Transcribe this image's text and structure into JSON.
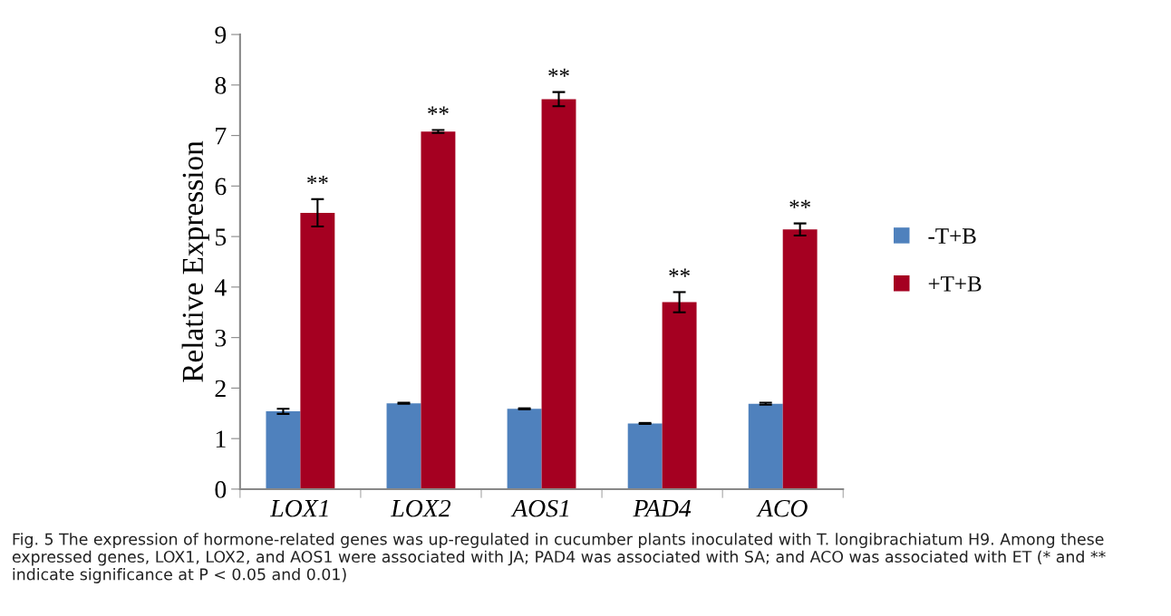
{
  "chart_data": {
    "type": "bar",
    "ylabel": "Relative Expression",
    "categories": [
      "LOX1",
      "LOX2",
      "AOS1",
      "PAD4",
      "ACO"
    ],
    "series": [
      {
        "name": "-T+B",
        "color": "#4f81bd",
        "values": [
          1.54,
          1.7,
          1.59,
          1.3,
          1.69
        ],
        "errors": [
          0.05,
          0.01,
          0.01,
          0.01,
          0.02
        ]
      },
      {
        "name": "+T+B",
        "color": "#a50021",
        "values": [
          5.47,
          7.08,
          7.72,
          3.7,
          5.14
        ],
        "errors": [
          0.27,
          0.03,
          0.14,
          0.2,
          0.12
        ]
      }
    ],
    "ylim": [
      0,
      9
    ],
    "yticks": [
      0,
      1,
      2,
      3,
      4,
      5,
      6,
      7,
      8,
      9
    ],
    "grid": false,
    "legend": "right",
    "annotations": [
      "**",
      "**",
      "**",
      "**",
      "**",
      "Fig. 5 The expression of hormone-related genes was up-regulated in cucumber plants inoculated with T. longibrachiatum H9. Among these expressed genes, LOX1, LOX2, and AOS1 were associated with JA; PAD4 was associated with SA; and ACO was associated with ET (* and ** indicate significance at P < 0.05 and 0.01)"
    ]
  }
}
